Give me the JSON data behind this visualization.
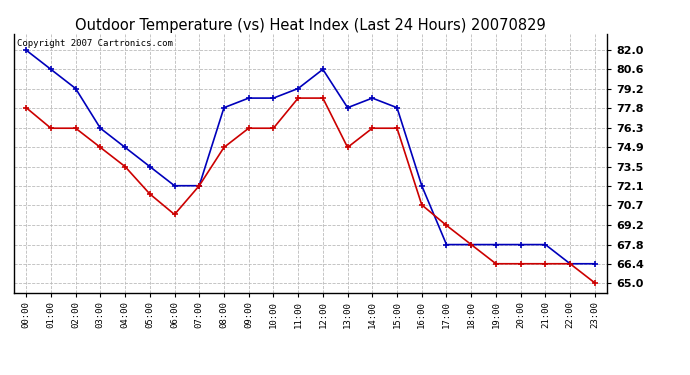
{
  "title": "Outdoor Temperature (vs) Heat Index (Last 24 Hours) 20070829",
  "copyright_text": "Copyright 2007 Cartronics.com",
  "hours": [
    "00:00",
    "01:00",
    "02:00",
    "03:00",
    "04:00",
    "05:00",
    "06:00",
    "07:00",
    "08:00",
    "09:00",
    "10:00",
    "11:00",
    "12:00",
    "13:00",
    "14:00",
    "15:00",
    "16:00",
    "17:00",
    "18:00",
    "19:00",
    "20:00",
    "21:00",
    "22:00",
    "23:00"
  ],
  "blue_data": [
    82.0,
    80.6,
    79.2,
    76.3,
    74.9,
    73.5,
    72.1,
    72.1,
    77.8,
    78.5,
    78.5,
    79.2,
    80.6,
    77.8,
    78.5,
    77.8,
    72.1,
    67.8,
    67.8,
    67.8,
    67.8,
    67.8,
    66.4,
    66.4
  ],
  "red_data": [
    77.8,
    76.3,
    76.3,
    74.9,
    73.5,
    71.5,
    70.0,
    72.1,
    74.9,
    76.3,
    76.3,
    78.5,
    78.5,
    74.9,
    76.3,
    76.3,
    70.7,
    69.2,
    67.8,
    66.4,
    66.4,
    66.4,
    66.4,
    65.0
  ],
  "ylim_min": 64.3,
  "ylim_max": 83.2,
  "yticks": [
    65.0,
    66.4,
    67.8,
    69.2,
    70.7,
    72.1,
    73.5,
    74.9,
    76.3,
    77.8,
    79.2,
    80.6,
    82.0
  ],
  "blue_color": "#0000bb",
  "red_color": "#cc0000",
  "bg_color": "#ffffff",
  "grid_color": "#bbbbbb",
  "title_fontsize": 10.5,
  "copyright_fontsize": 6.5
}
